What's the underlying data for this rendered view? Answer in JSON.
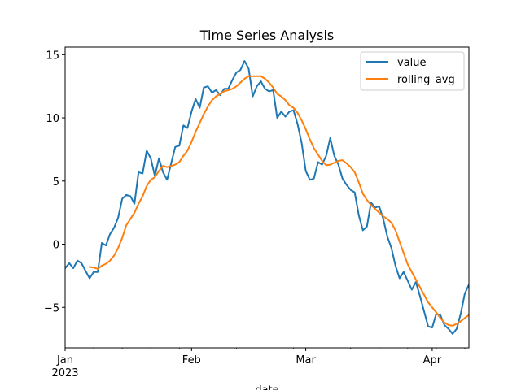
{
  "chart_data": {
    "type": "line",
    "title": "Time Series Analysis",
    "xlabel": "date",
    "ylabel": "",
    "x_range": [
      "2023-01-01",
      "2023-04-10"
    ],
    "ylim": [
      -8.2,
      15.6
    ],
    "grid": false,
    "legend_position": "top-right",
    "x_ticks": [
      {
        "date": "2023-01-01",
        "label": "Jan",
        "sublabel": "2023"
      },
      {
        "date": "2023-02-01",
        "label": "Feb"
      },
      {
        "date": "2023-03-01",
        "label": "Mar"
      },
      {
        "date": "2023-04-01",
        "label": "Apr"
      }
    ],
    "y_ticks": [
      {
        "value": -5,
        "label": "−5"
      },
      {
        "value": 0,
        "label": "0"
      },
      {
        "value": 5,
        "label": "5"
      },
      {
        "value": 10,
        "label": "10"
      },
      {
        "value": 15,
        "label": "15"
      }
    ],
    "series": [
      {
        "name": "value",
        "color": "#1f77b4",
        "points": [
          [
            "2023-01-01",
            -1.9
          ],
          [
            "2023-01-02",
            -1.5
          ],
          [
            "2023-01-03",
            -1.9
          ],
          [
            "2023-01-04",
            -1.3
          ],
          [
            "2023-01-05",
            -1.5
          ],
          [
            "2023-01-06",
            -2.1
          ],
          [
            "2023-01-07",
            -2.7
          ],
          [
            "2023-01-08",
            -2.2
          ],
          [
            "2023-01-09",
            -2.2
          ],
          [
            "2023-01-10",
            0.1
          ],
          [
            "2023-01-11",
            -0.1
          ],
          [
            "2023-01-12",
            0.8
          ],
          [
            "2023-01-13",
            1.3
          ],
          [
            "2023-01-14",
            2.1
          ],
          [
            "2023-01-15",
            3.6
          ],
          [
            "2023-01-16",
            3.9
          ],
          [
            "2023-01-17",
            3.8
          ],
          [
            "2023-01-18",
            3.2
          ],
          [
            "2023-01-19",
            5.7
          ],
          [
            "2023-01-20",
            5.6
          ],
          [
            "2023-01-21",
            7.4
          ],
          [
            "2023-01-22",
            6.8
          ],
          [
            "2023-01-23",
            5.4
          ],
          [
            "2023-01-24",
            6.8
          ],
          [
            "2023-01-25",
            5.7
          ],
          [
            "2023-01-26",
            5.1
          ],
          [
            "2023-01-27",
            6.4
          ],
          [
            "2023-01-28",
            7.7
          ],
          [
            "2023-01-29",
            7.8
          ],
          [
            "2023-01-30",
            9.4
          ],
          [
            "2023-01-31",
            9.2
          ],
          [
            "2023-02-01",
            10.5
          ],
          [
            "2023-02-02",
            11.5
          ],
          [
            "2023-02-03",
            10.8
          ],
          [
            "2023-02-04",
            12.4
          ],
          [
            "2023-02-05",
            12.5
          ],
          [
            "2023-02-06",
            12.0
          ],
          [
            "2023-02-07",
            12.2
          ],
          [
            "2023-02-08",
            11.8
          ],
          [
            "2023-02-09",
            12.3
          ],
          [
            "2023-02-10",
            12.3
          ],
          [
            "2023-02-11",
            13.0
          ],
          [
            "2023-02-12",
            13.6
          ],
          [
            "2023-02-13",
            13.8
          ],
          [
            "2023-02-14",
            14.5
          ],
          [
            "2023-02-15",
            13.9
          ],
          [
            "2023-02-16",
            11.7
          ],
          [
            "2023-02-17",
            12.5
          ],
          [
            "2023-02-18",
            12.9
          ],
          [
            "2023-02-19",
            12.3
          ],
          [
            "2023-02-20",
            12.1
          ],
          [
            "2023-02-21",
            12.2
          ],
          [
            "2023-02-22",
            10.0
          ],
          [
            "2023-02-23",
            10.5
          ],
          [
            "2023-02-24",
            10.1
          ],
          [
            "2023-02-25",
            10.5
          ],
          [
            "2023-02-26",
            10.6
          ],
          [
            "2023-02-27",
            9.5
          ],
          [
            "2023-02-28",
            8.0
          ],
          [
            "2023-03-01",
            5.8
          ],
          [
            "2023-03-02",
            5.1
          ],
          [
            "2023-03-03",
            5.2
          ],
          [
            "2023-03-04",
            6.5
          ],
          [
            "2023-03-05",
            6.3
          ],
          [
            "2023-03-06",
            7.0
          ],
          [
            "2023-03-07",
            8.4
          ],
          [
            "2023-03-08",
            7.0
          ],
          [
            "2023-03-09",
            6.3
          ],
          [
            "2023-03-10",
            5.2
          ],
          [
            "2023-03-11",
            4.7
          ],
          [
            "2023-03-12",
            4.3
          ],
          [
            "2023-03-13",
            4.1
          ],
          [
            "2023-03-14",
            2.3
          ],
          [
            "2023-03-15",
            1.1
          ],
          [
            "2023-03-16",
            1.4
          ],
          [
            "2023-03-17",
            3.3
          ],
          [
            "2023-03-18",
            2.9
          ],
          [
            "2023-03-19",
            3.0
          ],
          [
            "2023-03-20",
            2.0
          ],
          [
            "2023-03-21",
            0.6
          ],
          [
            "2023-03-22",
            -0.3
          ],
          [
            "2023-03-23",
            -1.7
          ],
          [
            "2023-03-24",
            -2.7
          ],
          [
            "2023-03-25",
            -2.2
          ],
          [
            "2023-03-26",
            -2.9
          ],
          [
            "2023-03-27",
            -3.6
          ],
          [
            "2023-03-28",
            -3.0
          ],
          [
            "2023-03-29",
            -4.1
          ],
          [
            "2023-03-30",
            -5.3
          ],
          [
            "2023-03-31",
            -6.5
          ],
          [
            "2023-04-01",
            -6.6
          ],
          [
            "2023-04-02",
            -5.5
          ],
          [
            "2023-04-03",
            -5.6
          ],
          [
            "2023-04-04",
            -6.4
          ],
          [
            "2023-04-05",
            -6.7
          ],
          [
            "2023-04-06",
            -7.1
          ],
          [
            "2023-04-07",
            -6.7
          ],
          [
            "2023-04-08",
            -5.5
          ],
          [
            "2023-04-09",
            -3.9
          ],
          [
            "2023-04-10",
            -3.2
          ]
        ]
      },
      {
        "name": "rolling_avg",
        "color": "#ff7f0e",
        "points": [
          [
            "2023-01-07",
            -1.8
          ],
          [
            "2023-01-08",
            -1.85
          ],
          [
            "2023-01-09",
            -1.95
          ],
          [
            "2023-01-10",
            -1.7
          ],
          [
            "2023-01-11",
            -1.55
          ],
          [
            "2023-01-12",
            -1.3
          ],
          [
            "2023-01-13",
            -0.9
          ],
          [
            "2023-01-14",
            -0.3
          ],
          [
            "2023-01-15",
            0.5
          ],
          [
            "2023-01-16",
            1.5
          ],
          [
            "2023-01-17",
            2.0
          ],
          [
            "2023-01-18",
            2.5
          ],
          [
            "2023-01-19",
            3.2
          ],
          [
            "2023-01-20",
            3.8
          ],
          [
            "2023-01-21",
            4.6
          ],
          [
            "2023-01-22",
            5.1
          ],
          [
            "2023-01-23",
            5.3
          ],
          [
            "2023-01-24",
            5.8
          ],
          [
            "2023-01-25",
            6.2
          ],
          [
            "2023-01-26",
            6.1
          ],
          [
            "2023-01-27",
            6.2
          ],
          [
            "2023-01-28",
            6.3
          ],
          [
            "2023-01-29",
            6.5
          ],
          [
            "2023-01-30",
            7.0
          ],
          [
            "2023-01-31",
            7.4
          ],
          [
            "2023-02-01",
            8.1
          ],
          [
            "2023-02-02",
            8.9
          ],
          [
            "2023-02-03",
            9.6
          ],
          [
            "2023-02-04",
            10.3
          ],
          [
            "2023-02-05",
            10.9
          ],
          [
            "2023-02-06",
            11.4
          ],
          [
            "2023-02-07",
            11.7
          ],
          [
            "2023-02-08",
            11.9
          ],
          [
            "2023-02-09",
            12.1
          ],
          [
            "2023-02-10",
            12.2
          ],
          [
            "2023-02-11",
            12.3
          ],
          [
            "2023-02-12",
            12.5
          ],
          [
            "2023-02-13",
            12.8
          ],
          [
            "2023-02-14",
            13.1
          ],
          [
            "2023-02-15",
            13.3
          ],
          [
            "2023-02-16",
            13.3
          ],
          [
            "2023-02-17",
            13.3
          ],
          [
            "2023-02-18",
            13.3
          ],
          [
            "2023-02-19",
            13.1
          ],
          [
            "2023-02-20",
            12.8
          ],
          [
            "2023-02-21",
            12.4
          ],
          [
            "2023-02-22",
            11.9
          ],
          [
            "2023-02-23",
            11.7
          ],
          [
            "2023-02-24",
            11.4
          ],
          [
            "2023-02-25",
            11.0
          ],
          [
            "2023-02-26",
            10.8
          ],
          [
            "2023-02-27",
            10.4
          ],
          [
            "2023-02-28",
            9.8
          ],
          [
            "2023-03-01",
            9.1
          ],
          [
            "2023-03-02",
            8.3
          ],
          [
            "2023-03-03",
            7.6
          ],
          [
            "2023-03-04",
            7.1
          ],
          [
            "2023-03-05",
            6.6
          ],
          [
            "2023-03-06",
            6.25
          ],
          [
            "2023-03-07",
            6.3
          ],
          [
            "2023-03-08",
            6.45
          ],
          [
            "2023-03-09",
            6.6
          ],
          [
            "2023-03-10",
            6.65
          ],
          [
            "2023-03-11",
            6.4
          ],
          [
            "2023-03-12",
            6.1
          ],
          [
            "2023-03-13",
            5.7
          ],
          [
            "2023-03-14",
            4.9
          ],
          [
            "2023-03-15",
            4.0
          ],
          [
            "2023-03-16",
            3.5
          ],
          [
            "2023-03-17",
            3.1
          ],
          [
            "2023-03-18",
            2.8
          ],
          [
            "2023-03-19",
            2.5
          ],
          [
            "2023-03-20",
            2.2
          ],
          [
            "2023-03-21",
            2.0
          ],
          [
            "2023-03-22",
            1.7
          ],
          [
            "2023-03-23",
            1.1
          ],
          [
            "2023-03-24",
            0.2
          ],
          [
            "2023-03-25",
            -0.7
          ],
          [
            "2023-03-26",
            -1.6
          ],
          [
            "2023-03-27",
            -2.2
          ],
          [
            "2023-03-28",
            -2.8
          ],
          [
            "2023-03-29",
            -3.4
          ],
          [
            "2023-03-30",
            -4.0
          ],
          [
            "2023-03-31",
            -4.6
          ],
          [
            "2023-04-01",
            -5.0
          ],
          [
            "2023-04-02",
            -5.4
          ],
          [
            "2023-04-03",
            -5.85
          ],
          [
            "2023-04-04",
            -6.2
          ],
          [
            "2023-04-05",
            -6.4
          ],
          [
            "2023-04-06",
            -6.45
          ],
          [
            "2023-04-07",
            -6.3
          ],
          [
            "2023-04-08",
            -6.1
          ],
          [
            "2023-04-09",
            -5.85
          ],
          [
            "2023-04-10",
            -5.6
          ]
        ]
      }
    ]
  }
}
